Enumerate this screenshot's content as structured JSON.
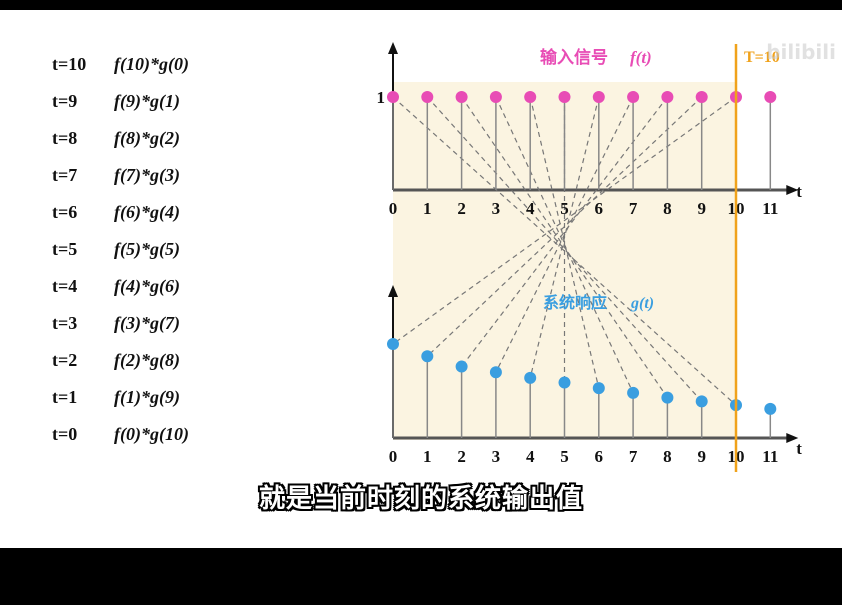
{
  "colors": {
    "top_signal": "#e84cb5",
    "bottom_signal": "#3a9ee0",
    "time_marker": "#f0a21b",
    "panel_bg": "#fbf4e1",
    "axis": "#555555",
    "stem": "#888888"
  },
  "terms": [
    {
      "t": "t=10",
      "f": "f(10)",
      "g": "*g(0)"
    },
    {
      "t": "t=9",
      "f": "f(9)",
      "g": "*g(1)"
    },
    {
      "t": "t=8",
      "f": "f(8)",
      "g": "*g(2)"
    },
    {
      "t": "t=7",
      "f": "f(7)",
      "g": "*g(3)"
    },
    {
      "t": "t=6",
      "f": "f(6)",
      "g": "*g(4)"
    },
    {
      "t": "t=5",
      "f": "f(5)",
      "g": "*g(5)"
    },
    {
      "t": "t=4",
      "f": "f(4)",
      "g": "*g(6)"
    },
    {
      "t": "t=3",
      "f": "f(3)",
      "g": "*g(7)"
    },
    {
      "t": "t=2",
      "f": "f(2)",
      "g": "*g(8)"
    },
    {
      "t": "t=1",
      "f": "f(1)",
      "g": "*g(9)"
    },
    {
      "t": "t=0",
      "f": "f(0)",
      "g": "*g(10)"
    }
  ],
  "top_chart": {
    "title": "输入信号",
    "title_func": "f(t)",
    "y_tick": "1",
    "axis_label": "t",
    "x_ticks": [
      "0",
      "1",
      "2",
      "3",
      "4",
      "5",
      "6",
      "7",
      "8",
      "9",
      "10",
      "11"
    ],
    "values": [
      1,
      1,
      1,
      1,
      1,
      1,
      1,
      1,
      1,
      1,
      1,
      1
    ]
  },
  "bottom_chart": {
    "title": "系统响应",
    "title_func": "g(t)",
    "axis_label": "t",
    "x_ticks": [
      "0",
      "1",
      "2",
      "3",
      "4",
      "5",
      "6",
      "7",
      "8",
      "9",
      "10",
      "11"
    ],
    "values": [
      1.0,
      0.87,
      0.76,
      0.7,
      0.64,
      0.59,
      0.53,
      0.48,
      0.43,
      0.39,
      0.35,
      0.31
    ]
  },
  "time_marker": {
    "label": "T=10",
    "t": 10
  },
  "subtitle": "就是当前时刻的系统输出值",
  "watermark": "bilibili"
}
